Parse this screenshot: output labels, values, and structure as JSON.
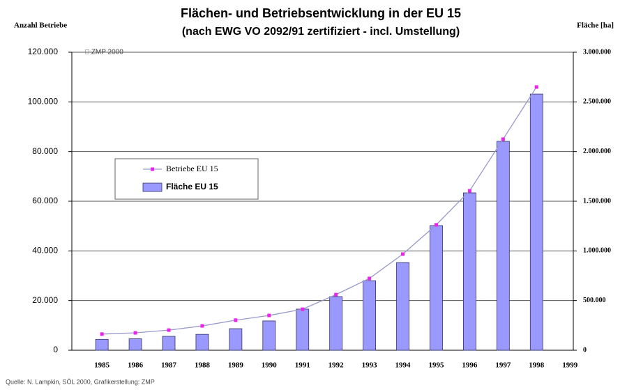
{
  "chart_data": {
    "type": "bar-line",
    "title": "Flächen- und Betriebsentwicklung in der EU 15",
    "subtitle": "(nach EWG VO 2092/91 zertifiziert - incl. Umstellung)",
    "y_label": "Anzahl Betriebe",
    "y2_label": "Fläche [ha]",
    "annotation": "□ ZMP 2000",
    "source": "Quelle: N. Lampkin, SÖL 2000, Grafikerstellung: ZMP",
    "categories": [
      "1985",
      "1986",
      "1987",
      "1988",
      "1989",
      "1990",
      "1991",
      "1992",
      "1993",
      "1994",
      "1995",
      "1996",
      "1997",
      "1998",
      "1999"
    ],
    "series": [
      {
        "name": "Betriebe EU 15",
        "type": "line",
        "color": "#ee22ee",
        "line_color": "#9999cc",
        "values": [
          6500,
          7000,
          8100,
          9800,
          12100,
          14000,
          16500,
          22400,
          28900,
          38700,
          50500,
          64200,
          85000,
          106000,
          null
        ]
      },
      {
        "name": "Fläche EU 15",
        "type": "bar",
        "axis": "y2",
        "color": "#9999ff",
        "values": [
          110000,
          115000,
          140000,
          160000,
          217000,
          295000,
          414000,
          540000,
          700000,
          883000,
          1255000,
          1584000,
          2103000,
          2579000,
          null
        ]
      }
    ],
    "ylim": [
      0,
      120000
    ],
    "yticks": [
      0,
      {
        "value": 20000,
        "label": "20.000"
      },
      {
        "value": 40000,
        "label": "40.000"
      },
      {
        "value": 60000,
        "label": "60.000"
      },
      {
        "value": 80000,
        "label": "80.000"
      },
      {
        "value": 100000,
        "label": "100.000"
      },
      {
        "value": 120000,
        "label": "120.000"
      }
    ],
    "y2lim": [
      0,
      3000000
    ],
    "y2ticks": [
      0,
      {
        "value": 500000,
        "label": "500.000"
      },
      {
        "value": 1000000,
        "label": "1.000.000"
      },
      {
        "value": 1500000,
        "label": "1.500.000"
      },
      {
        "value": 2000000,
        "label": "2.000.000"
      },
      {
        "value": 2500000,
        "label": "2.500.000"
      },
      {
        "value": 3000000,
        "label": "3.000.000"
      }
    ],
    "grid": true
  }
}
